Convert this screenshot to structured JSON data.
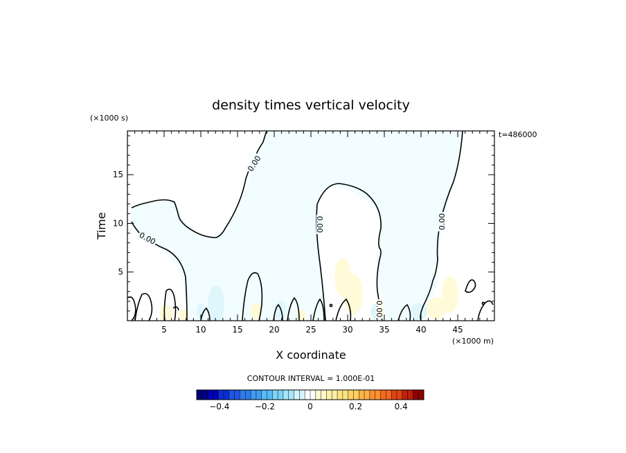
{
  "chart_data": {
    "type": "contour",
    "title": "density times vertical velocity",
    "xlabel": "X coordinate",
    "ylabel": "Time",
    "x_units": "(×1000 m)",
    "y_units": "(×1000 s)",
    "time_stamp": "t=486000",
    "xlim": [
      0,
      50
    ],
    "ylim": [
      0,
      19.5
    ],
    "x_ticks": [
      5,
      10,
      15,
      20,
      25,
      30,
      35,
      40,
      45
    ],
    "y_ticks": [
      5,
      10,
      15
    ],
    "contour_interval_label": "CONTOUR INTERVAL = 1.000E-01",
    "contour_level_label": "0.00",
    "colorbar": {
      "range": [
        -0.5,
        0.5
      ],
      "tick_values": [
        -0.4,
        -0.2,
        0,
        0.2,
        0.4
      ],
      "tick_labels": [
        "−0.4",
        "−0.2",
        "0",
        "0.2",
        "0.4"
      ],
      "colors": [
        "#00007f",
        "#0000b5",
        "#0a2fd6",
        "#1f56e3",
        "#2f7bec",
        "#3f9cf2",
        "#58bbf6",
        "#7dd4f8",
        "#a8e6fb",
        "#d4f5fd",
        "#ffffff",
        "#fff9cf",
        "#fff0a8",
        "#ffe383",
        "#ffd062",
        "#ffb347",
        "#ff9030",
        "#f46a1f",
        "#e04312",
        "#c01f08",
        "#8f0000"
      ]
    }
  }
}
